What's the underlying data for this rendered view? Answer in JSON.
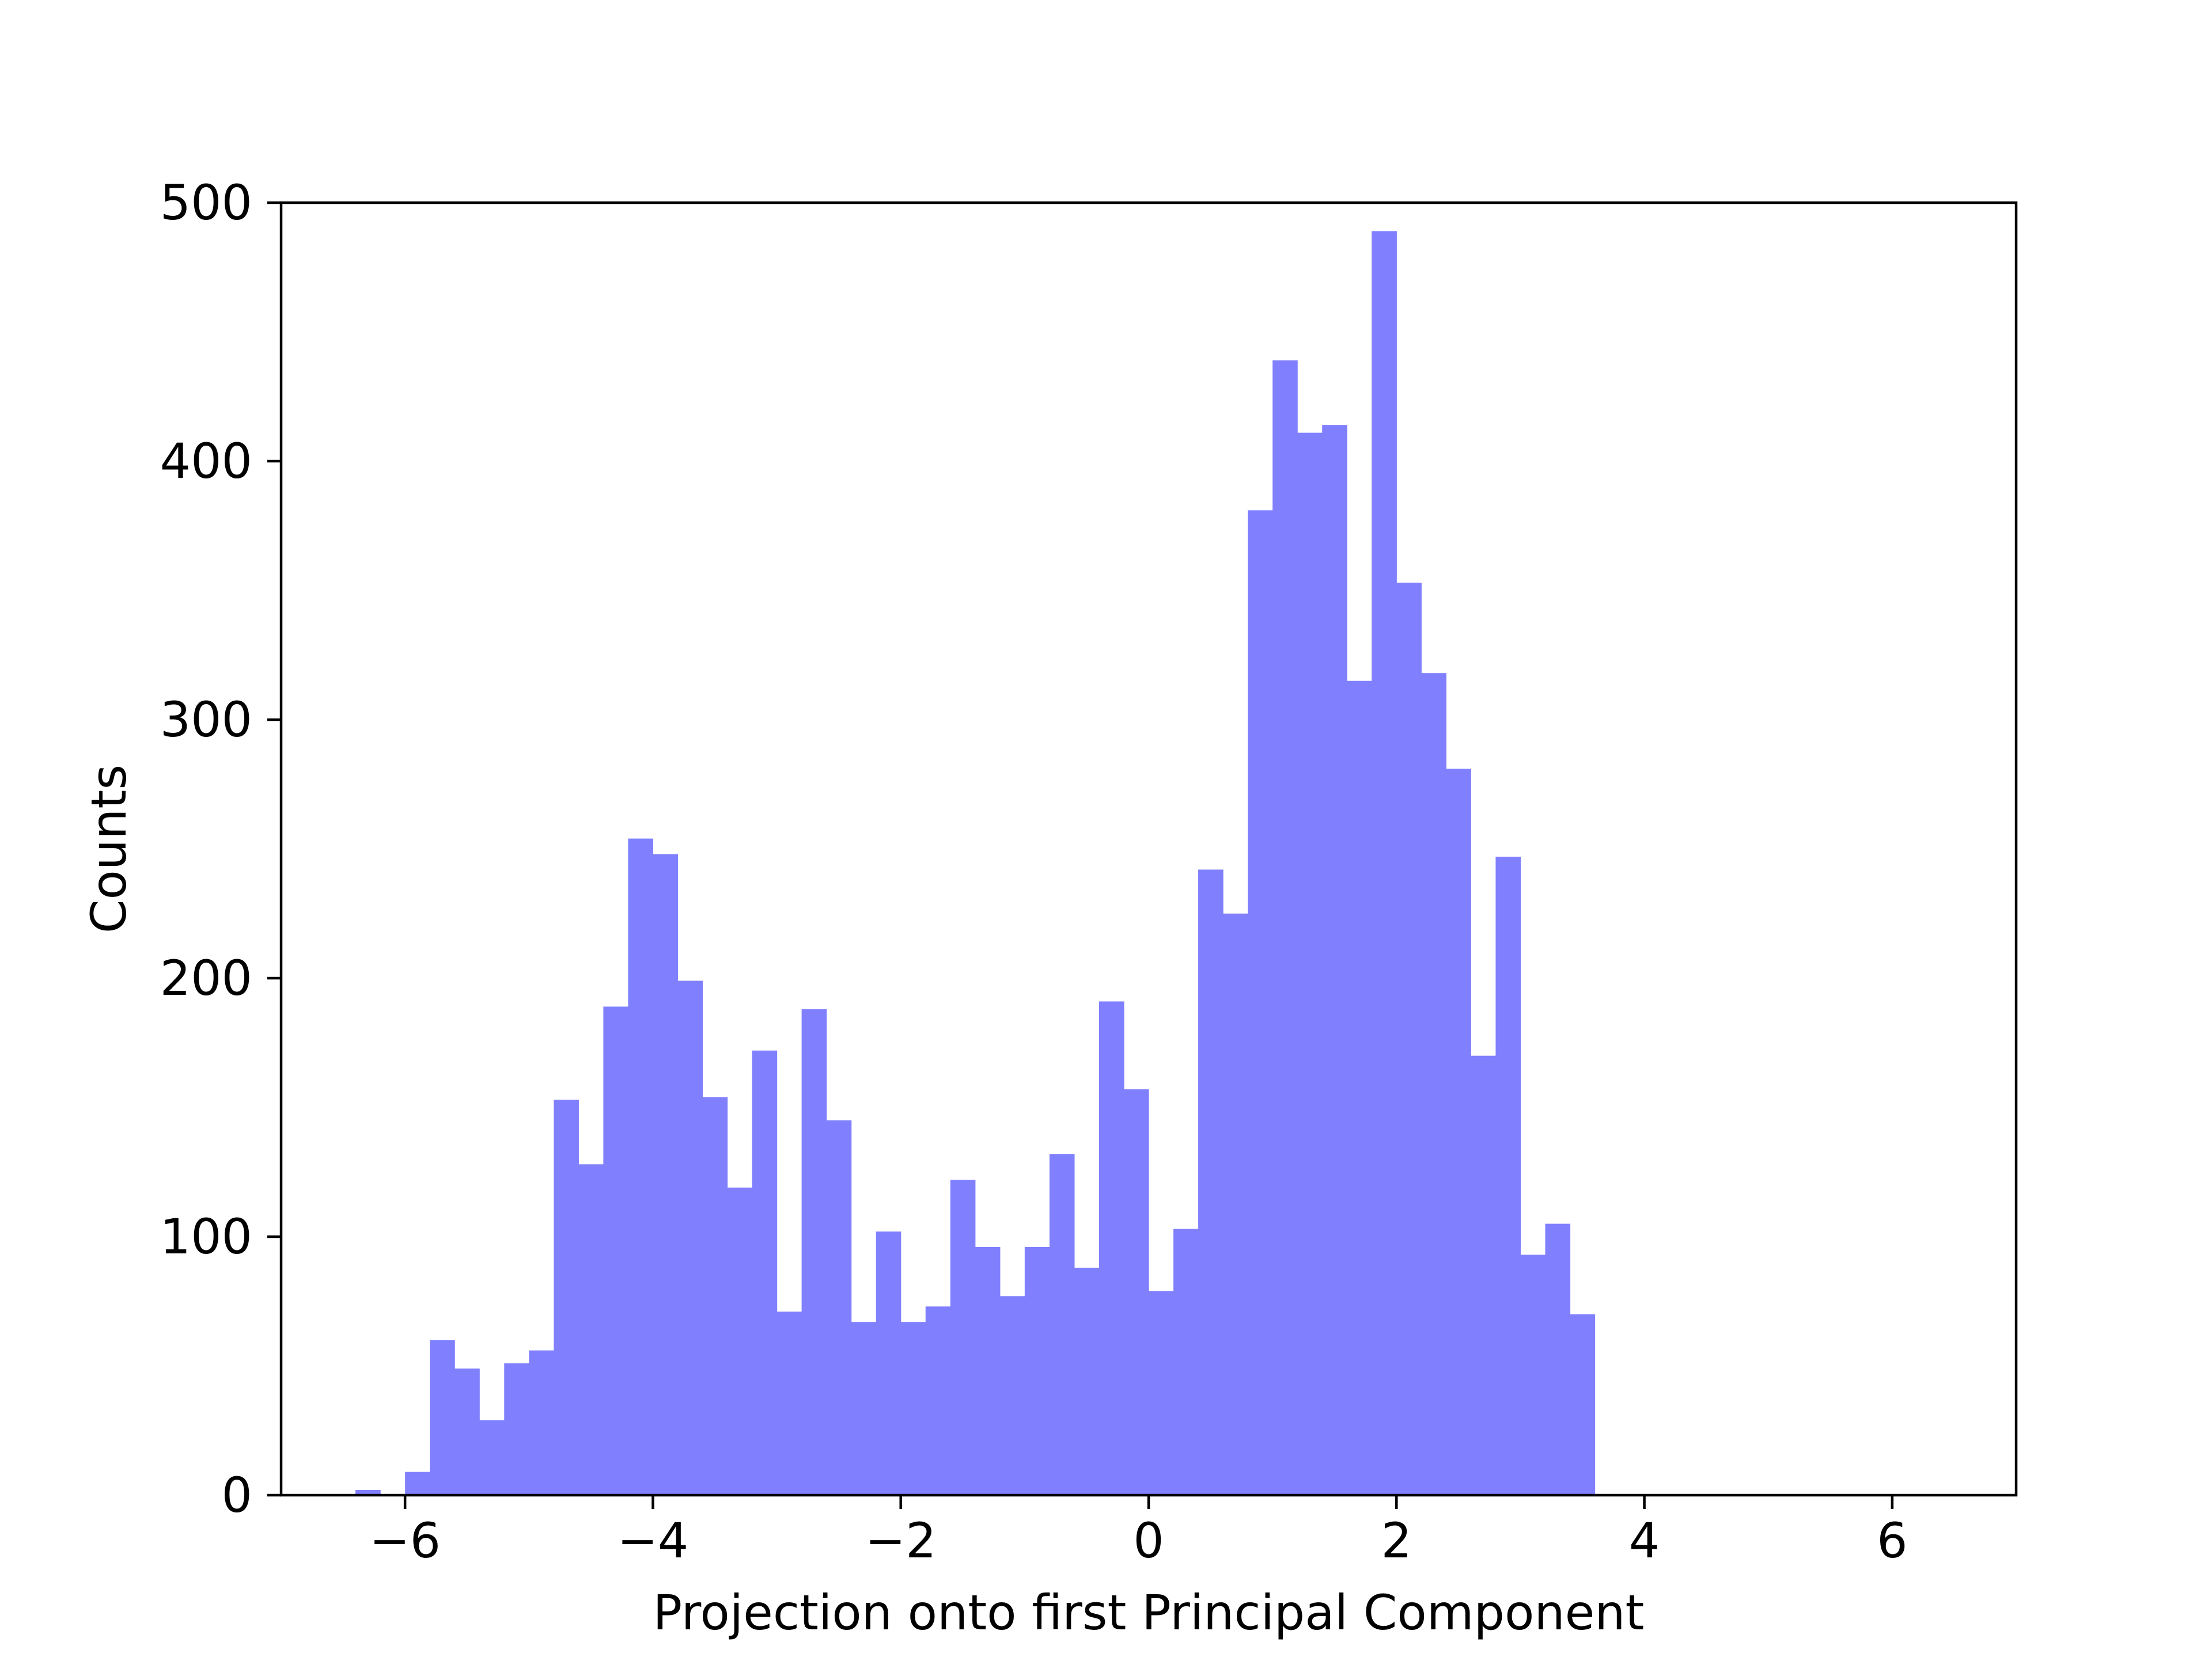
{
  "chart_data": {
    "type": "bar",
    "title": "",
    "xlabel": "Projection onto first Principal Component",
    "ylabel": "Counts",
    "xlim": [
      -7,
      7
    ],
    "ylim": [
      0,
      500
    ],
    "xticks": [
      -6,
      -4,
      -2,
      0,
      2,
      4,
      6
    ],
    "xtick_labels": [
      "−6",
      "−4",
      "−2",
      "0",
      "2",
      "4",
      "6"
    ],
    "yticks": [
      0,
      100,
      200,
      300,
      400,
      500
    ],
    "ytick_labels": [
      "0",
      "100",
      "200",
      "300",
      "400",
      "500"
    ],
    "grid": false,
    "legend": false,
    "bar_color": "#8080ff",
    "bins": [
      {
        "x0": -6.4,
        "x1": -6.2,
        "count": 2
      },
      {
        "x0": -6.2,
        "x1": -6.0,
        "count": 0
      },
      {
        "x0": -6.0,
        "x1": -5.8,
        "count": 9
      },
      {
        "x0": -5.8,
        "x1": -5.6,
        "count": 60
      },
      {
        "x0": -5.6,
        "x1": -5.4,
        "count": 49
      },
      {
        "x0": -5.4,
        "x1": -5.2,
        "count": 29
      },
      {
        "x0": -5.2,
        "x1": -5.0,
        "count": 51
      },
      {
        "x0": -5.0,
        "x1": -4.8,
        "count": 56
      },
      {
        "x0": -4.8,
        "x1": -4.6,
        "count": 153
      },
      {
        "x0": -4.6,
        "x1": -4.4,
        "count": 128
      },
      {
        "x0": -4.4,
        "x1": -4.2,
        "count": 189
      },
      {
        "x0": -4.2,
        "x1": -4.0,
        "count": 254
      },
      {
        "x0": -4.0,
        "x1": -3.8,
        "count": 248
      },
      {
        "x0": -3.8,
        "x1": -3.6,
        "count": 199
      },
      {
        "x0": -3.6,
        "x1": -3.4,
        "count": 154
      },
      {
        "x0": -3.4,
        "x1": -3.2,
        "count": 119
      },
      {
        "x0": -3.2,
        "x1": -3.0,
        "count": 172
      },
      {
        "x0": -3.0,
        "x1": -2.8,
        "count": 71
      },
      {
        "x0": -2.8,
        "x1": -2.6,
        "count": 188
      },
      {
        "x0": -2.6,
        "x1": -2.4,
        "count": 145
      },
      {
        "x0": -2.4,
        "x1": -2.2,
        "count": 67
      },
      {
        "x0": -2.2,
        "x1": -2.0,
        "count": 102
      },
      {
        "x0": -2.0,
        "x1": -1.8,
        "count": 67
      },
      {
        "x0": -1.8,
        "x1": -1.6,
        "count": 73
      },
      {
        "x0": -1.6,
        "x1": -1.4,
        "count": 122
      },
      {
        "x0": -1.4,
        "x1": -1.2,
        "count": 96
      },
      {
        "x0": -1.2,
        "x1": -1.0,
        "count": 77
      },
      {
        "x0": -1.0,
        "x1": -0.8,
        "count": 96
      },
      {
        "x0": -0.8,
        "x1": -0.6,
        "count": 132
      },
      {
        "x0": -0.6,
        "x1": -0.4,
        "count": 88
      },
      {
        "x0": -0.4,
        "x1": -0.2,
        "count": 191
      },
      {
        "x0": -0.2,
        "x1": 0.0,
        "count": 157
      },
      {
        "x0": 0.0,
        "x1": 0.2,
        "count": 79
      },
      {
        "x0": 0.2,
        "x1": 0.4,
        "count": 103
      },
      {
        "x0": 0.4,
        "x1": 0.6,
        "count": 242
      },
      {
        "x0": 0.6,
        "x1": 0.8,
        "count": 225
      },
      {
        "x0": 0.8,
        "x1": 1.0,
        "count": 381
      },
      {
        "x0": 1.0,
        "x1": 1.2,
        "count": 439
      },
      {
        "x0": 1.2,
        "x1": 1.4,
        "count": 411
      },
      {
        "x0": 1.4,
        "x1": 1.6,
        "count": 414
      },
      {
        "x0": 1.6,
        "x1": 1.8,
        "count": 315
      },
      {
        "x0": 1.8,
        "x1": 2.0,
        "count": 489
      },
      {
        "x0": 2.0,
        "x1": 2.2,
        "count": 353
      },
      {
        "x0": 2.2,
        "x1": 2.4,
        "count": 318
      },
      {
        "x0": 2.4,
        "x1": 2.6,
        "count": 281
      },
      {
        "x0": 2.6,
        "x1": 2.8,
        "count": 170
      },
      {
        "x0": 2.8,
        "x1": 3.0,
        "count": 247
      },
      {
        "x0": 3.0,
        "x1": 3.2,
        "count": 93
      },
      {
        "x0": 3.2,
        "x1": 3.4,
        "count": 105
      },
      {
        "x0": 3.4,
        "x1": 3.6,
        "count": 70
      }
    ]
  }
}
